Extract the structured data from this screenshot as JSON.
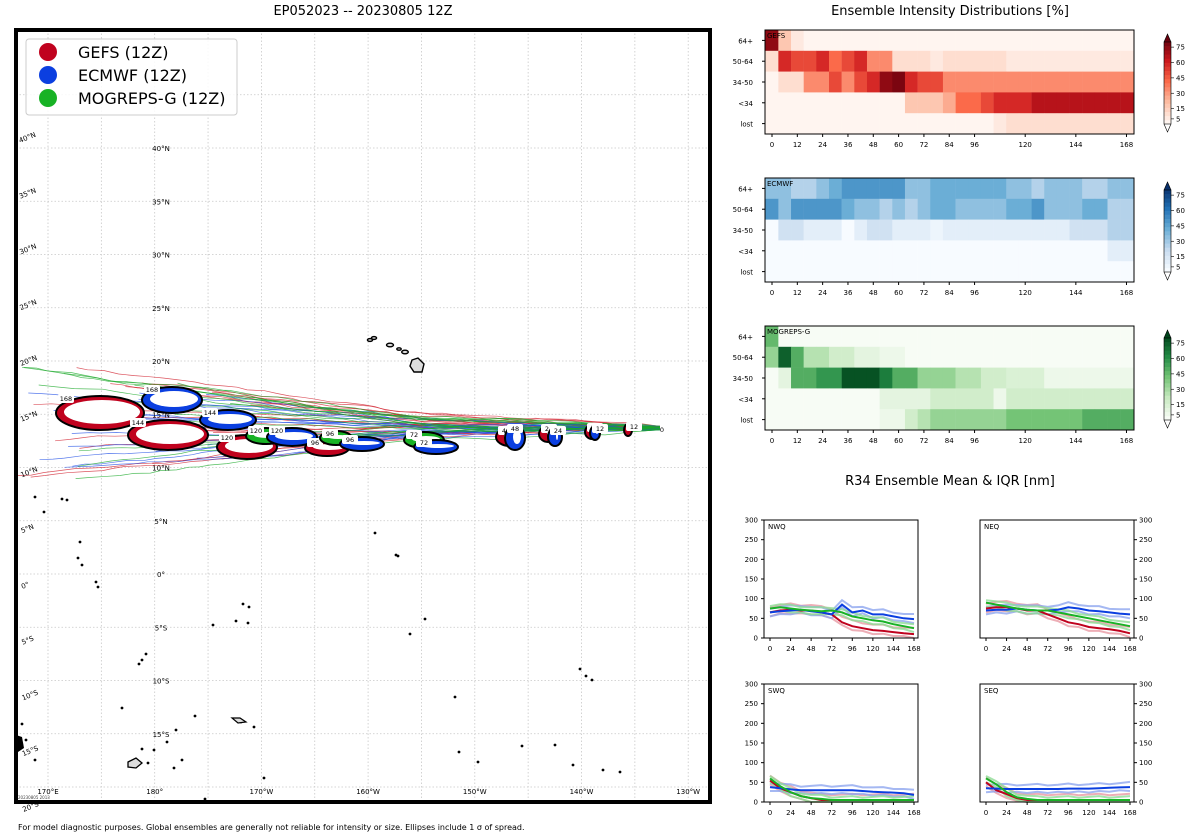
{
  "map": {
    "title": "EP052023 -- 20230805 12Z",
    "legend": [
      {
        "label": "GEFS (12Z)",
        "color": "#c0021e"
      },
      {
        "label": "ECMWF (12Z)",
        "color": "#0b3fe0"
      },
      {
        "label": "MOGREPS-G (12Z)",
        "color": "#18b225"
      }
    ],
    "lat_labels_left": [
      "40°N",
      "35°N",
      "30°N",
      "25°N",
      "20°N",
      "15°N",
      "10°N",
      "5°N",
      "0°",
      "5°S",
      "10°S",
      "15°S",
      "20°S"
    ],
    "lat_labels_inner": [
      "40°N",
      "35°N",
      "30°N",
      "25°N",
      "20°N",
      "15°N",
      "10°N",
      "5°N",
      "0°",
      "5°S",
      "10°S",
      "15°S"
    ],
    "lon_labels": [
      "170°E",
      "180°",
      "170°W",
      "160°W",
      "150°W",
      "140°W",
      "130°W"
    ],
    "stamp": "20230805 2013",
    "ellipse_hours": [
      "168",
      "144",
      "120",
      "96",
      "72",
      "48",
      "24",
      "12",
      "0"
    ]
  },
  "footer": "For model diagnostic purposes. Global ensembles are generally not reliable for intensity or size. Ellipses include 1 σ of spread.",
  "intensity": {
    "title": "Ensemble Intensity Distributions [%]",
    "categories": [
      "64+",
      "50-64",
      "34-50",
      "<34",
      "lost"
    ],
    "x_ticks": [
      "0",
      "12",
      "24",
      "36",
      "48",
      "60",
      "72",
      "84",
      "96",
      "120",
      "144",
      "168"
    ],
    "colorbar_ticks": [
      "75",
      "60",
      "45",
      "30",
      "15",
      "5"
    ],
    "panels": [
      {
        "name": "GEFS",
        "cmap": "reds"
      },
      {
        "name": "ECMWF",
        "cmap": "blues"
      },
      {
        "name": "MOGREPS-G",
        "cmap": "greens"
      }
    ]
  },
  "r34": {
    "title": "R34 Ensemble Mean & IQR [nm]",
    "y_ticks": [
      "300",
      "250",
      "200",
      "150",
      "100",
      "50",
      "0"
    ],
    "x_ticks": [
      "0",
      "24",
      "48",
      "72",
      "96",
      "120",
      "144",
      "168"
    ],
    "quadrants": [
      "NWQ",
      "NEQ",
      "SWQ",
      "SEQ"
    ]
  },
  "chart_data": [
    {
      "type": "heatmap",
      "title": "GEFS",
      "x": [
        0,
        6,
        12,
        18,
        24,
        30,
        36,
        42,
        48,
        54,
        60,
        66,
        72,
        78,
        84,
        90,
        96,
        102,
        108,
        114,
        120,
        126,
        132,
        138,
        144,
        150,
        156,
        162,
        168
      ],
      "y": [
        "64+",
        "50-64",
        "34-50",
        "<34",
        "lost"
      ],
      "values": [
        [
          90,
          20,
          5,
          0,
          0,
          0,
          0,
          0,
          0,
          0,
          0,
          0,
          0,
          0,
          0,
          0,
          0,
          0,
          0,
          0,
          0,
          0,
          0,
          0,
          0,
          0,
          0,
          0,
          0
        ],
        [
          10,
          70,
          60,
          60,
          70,
          50,
          60,
          70,
          40,
          40,
          10,
          10,
          10,
          5,
          10,
          10,
          10,
          10,
          10,
          5,
          5,
          5,
          5,
          5,
          5,
          5,
          5,
          5,
          5
        ],
        [
          0,
          10,
          10,
          40,
          40,
          60,
          40,
          60,
          70,
          90,
          95,
          70,
          60,
          60,
          40,
          40,
          40,
          40,
          40,
          40,
          40,
          40,
          40,
          40,
          40,
          40,
          40,
          40,
          40
        ],
        [
          0,
          0,
          0,
          0,
          0,
          0,
          0,
          0,
          0,
          0,
          0,
          20,
          20,
          20,
          30,
          50,
          50,
          60,
          70,
          70,
          70,
          80,
          80,
          80,
          80,
          80,
          80,
          80,
          80
        ],
        [
          0,
          0,
          0,
          0,
          0,
          0,
          0,
          0,
          0,
          0,
          0,
          0,
          0,
          0,
          0,
          0,
          0,
          0,
          5,
          10,
          10,
          10,
          10,
          10,
          10,
          10,
          10,
          10,
          10
        ]
      ]
    },
    {
      "type": "heatmap",
      "title": "ECMWF",
      "x": [
        0,
        6,
        12,
        18,
        24,
        30,
        36,
        42,
        48,
        54,
        60,
        66,
        72,
        78,
        84,
        90,
        96,
        102,
        108,
        114,
        120,
        126,
        132,
        138,
        144,
        150,
        156,
        162,
        168
      ],
      "y": [
        "64+",
        "50-64",
        "34-50",
        "<34",
        "lost"
      ],
      "values": [
        [
          40,
          40,
          30,
          30,
          40,
          50,
          60,
          60,
          60,
          60,
          60,
          40,
          40,
          50,
          50,
          50,
          50,
          50,
          50,
          40,
          40,
          30,
          40,
          40,
          40,
          30,
          30,
          40,
          40
        ],
        [
          60,
          40,
          60,
          60,
          60,
          60,
          50,
          40,
          40,
          30,
          40,
          30,
          40,
          50,
          50,
          40,
          40,
          40,
          40,
          50,
          50,
          60,
          40,
          40,
          40,
          50,
          50,
          30,
          30
        ],
        [
          0,
          20,
          20,
          10,
          10,
          10,
          0,
          10,
          20,
          20,
          10,
          10,
          10,
          5,
          10,
          10,
          10,
          10,
          10,
          10,
          10,
          10,
          10,
          10,
          20,
          20,
          20,
          30,
          30
        ],
        [
          0,
          0,
          0,
          0,
          0,
          0,
          0,
          0,
          0,
          0,
          0,
          0,
          0,
          0,
          0,
          0,
          0,
          0,
          0,
          0,
          0,
          0,
          0,
          0,
          0,
          0,
          0,
          10,
          10
        ],
        [
          0,
          0,
          0,
          0,
          0,
          0,
          0,
          0,
          0,
          0,
          0,
          0,
          0,
          0,
          0,
          0,
          0,
          0,
          0,
          0,
          0,
          0,
          0,
          0,
          0,
          0,
          0,
          0,
          0
        ]
      ]
    },
    {
      "type": "heatmap",
      "title": "MOGREPS-G",
      "x": [
        0,
        6,
        12,
        18,
        24,
        30,
        36,
        42,
        48,
        54,
        60,
        66,
        72,
        78,
        84,
        90,
        96,
        102,
        108,
        114,
        120,
        126,
        132,
        138,
        144,
        150,
        156,
        162,
        168
      ],
      "y": [
        "64+",
        "50-64",
        "34-50",
        "<34",
        "lost"
      ],
      "values": [
        [
          55,
          0,
          0,
          0,
          0,
          0,
          0,
          0,
          0,
          0,
          0,
          0,
          0,
          0,
          0,
          0,
          0,
          0,
          0,
          0,
          0,
          0,
          0,
          0,
          0,
          0,
          0,
          0,
          0
        ],
        [
          40,
          90,
          60,
          30,
          30,
          20,
          20,
          10,
          10,
          5,
          5,
          0,
          0,
          0,
          0,
          0,
          0,
          0,
          0,
          0,
          0,
          0,
          0,
          0,
          0,
          0,
          0,
          0,
          0
        ],
        [
          0,
          10,
          60,
          60,
          70,
          70,
          95,
          95,
          95,
          80,
          60,
          60,
          40,
          40,
          40,
          30,
          30,
          20,
          20,
          15,
          15,
          15,
          5,
          5,
          5,
          5,
          5,
          5,
          5
        ],
        [
          0,
          0,
          0,
          0,
          0,
          0,
          0,
          0,
          0,
          10,
          10,
          10,
          10,
          20,
          20,
          20,
          20,
          20,
          5,
          20,
          20,
          20,
          20,
          20,
          20,
          20,
          20,
          20,
          20
        ],
        [
          0,
          0,
          0,
          0,
          0,
          0,
          0,
          0,
          0,
          5,
          5,
          20,
          30,
          40,
          40,
          40,
          40,
          40,
          40,
          50,
          50,
          50,
          50,
          50,
          50,
          60,
          60,
          60,
          60
        ]
      ]
    },
    {
      "type": "line",
      "title": "NWQ",
      "x": [
        0,
        12,
        24,
        36,
        48,
        60,
        72,
        84,
        96,
        108,
        120,
        132,
        144,
        156,
        168
      ],
      "ylim": [
        0,
        300
      ],
      "series": [
        {
          "name": "GEFS",
          "values": [
            65,
            70,
            72,
            70,
            70,
            65,
            60,
            40,
            30,
            25,
            20,
            18,
            15,
            12,
            10
          ]
        },
        {
          "name": "ECMWF",
          "values": [
            65,
            68,
            70,
            72,
            68,
            65,
            60,
            85,
            65,
            70,
            60,
            60,
            55,
            50,
            48
          ]
        },
        {
          "name": "MOGREPS-G",
          "values": [
            75,
            78,
            75,
            72,
            70,
            68,
            70,
            65,
            55,
            50,
            45,
            42,
            35,
            30,
            25
          ]
        }
      ]
    },
    {
      "type": "line",
      "title": "NEQ",
      "x": [
        0,
        12,
        24,
        36,
        48,
        60,
        72,
        84,
        96,
        108,
        120,
        132,
        144,
        156,
        168
      ],
      "ylim": [
        0,
        300
      ],
      "series": [
        {
          "name": "GEFS",
          "values": [
            75,
            78,
            78,
            75,
            70,
            70,
            60,
            50,
            40,
            35,
            28,
            25,
            22,
            18,
            12
          ]
        },
        {
          "name": "ECMWF",
          "values": [
            70,
            72,
            72,
            75,
            72,
            70,
            70,
            72,
            78,
            75,
            70,
            68,
            65,
            62,
            60
          ]
        },
        {
          "name": "MOGREPS-G",
          "values": [
            90,
            85,
            80,
            75,
            72,
            70,
            70,
            65,
            60,
            55,
            50,
            45,
            40,
            35,
            30
          ]
        }
      ]
    },
    {
      "type": "line",
      "title": "SWQ",
      "x": [
        0,
        12,
        24,
        36,
        48,
        60,
        72,
        84,
        96,
        108,
        120,
        132,
        144,
        156,
        168
      ],
      "ylim": [
        0,
        300
      ],
      "series": [
        {
          "name": "GEFS",
          "values": [
            55,
            35,
            25,
            15,
            10,
            5,
            5,
            5,
            5,
            5,
            5,
            5,
            5,
            5,
            5
          ]
        },
        {
          "name": "ECMWF",
          "values": [
            38,
            35,
            32,
            30,
            30,
            30,
            30,
            30,
            30,
            28,
            26,
            25,
            24,
            22,
            18
          ]
        },
        {
          "name": "MOGREPS-G",
          "values": [
            60,
            40,
            25,
            15,
            10,
            8,
            5,
            5,
            5,
            5,
            5,
            5,
            5,
            5,
            5
          ]
        }
      ]
    },
    {
      "type": "line",
      "title": "SEQ",
      "x": [
        0,
        12,
        24,
        36,
        48,
        60,
        72,
        84,
        96,
        108,
        120,
        132,
        144,
        156,
        168
      ],
      "ylim": [
        0,
        300
      ],
      "series": [
        {
          "name": "GEFS",
          "values": [
            50,
            30,
            20,
            10,
            5,
            5,
            5,
            5,
            5,
            5,
            5,
            5,
            5,
            5,
            5
          ]
        },
        {
          "name": "ECMWF",
          "values": [
            35,
            34,
            33,
            33,
            33,
            33,
            33,
            33,
            34,
            34,
            34,
            35,
            36,
            37,
            38
          ]
        },
        {
          "name": "MOGREPS-G",
          "values": [
            60,
            45,
            25,
            12,
            8,
            5,
            5,
            5,
            5,
            5,
            5,
            5,
            5,
            5,
            5
          ]
        }
      ]
    }
  ]
}
